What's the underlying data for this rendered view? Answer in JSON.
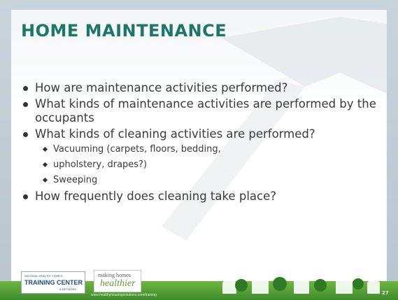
{
  "title": "HOME MAINTENANCE",
  "bullets": [
    {
      "text": "How are maintenance activities performed?"
    },
    {
      "text": "What kinds of maintenance activities are performed by the occupants"
    },
    {
      "text": "What kinds of cleaning activities are performed?",
      "sub": [
        "Vacuuming (carpets, floors, bedding,",
        "upholstery, drapes?)",
        "Sweeping"
      ]
    },
    {
      "text": "How frequently does cleaning take place?"
    }
  ],
  "footer": {
    "logo1": [
      "NATIONAL HEALTHY HOMES",
      "TRAINING CENTER",
      "& NETWORK"
    ],
    "logo2": [
      "making homes",
      "healthier"
    ],
    "url": "www.healthyhousingsolutions.com/training",
    "page": "27"
  }
}
